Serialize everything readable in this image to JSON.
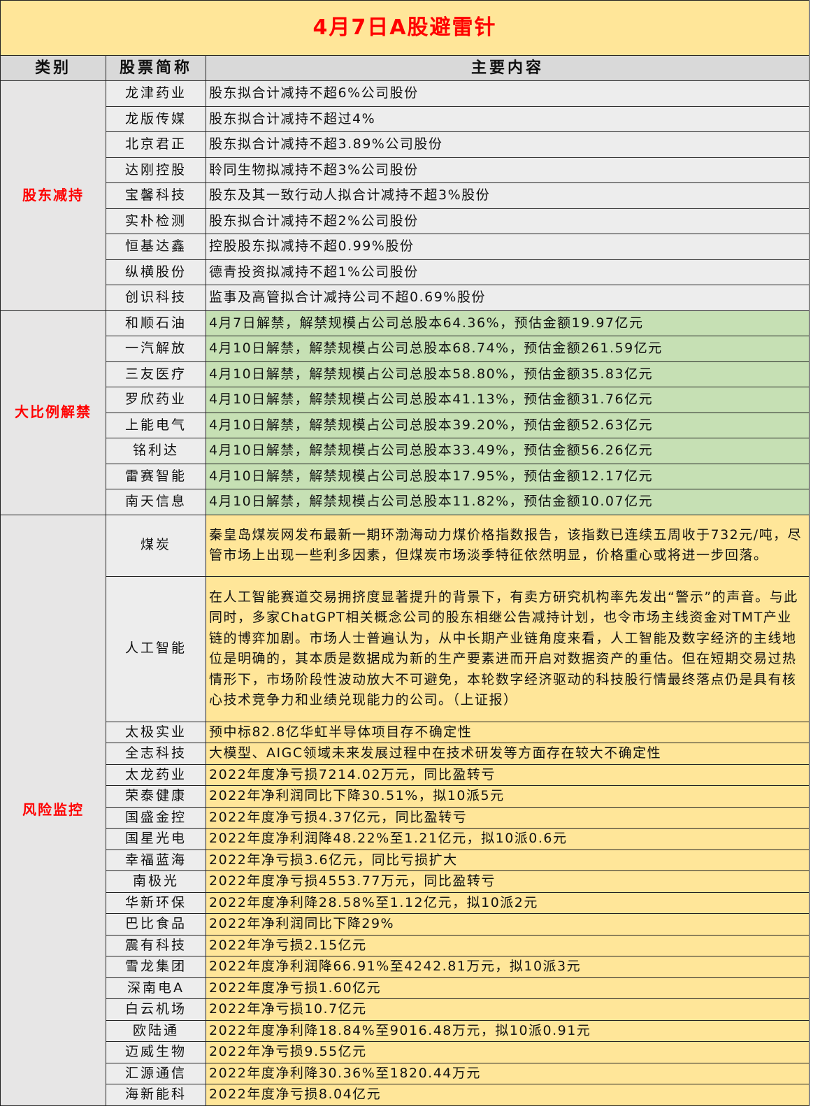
{
  "title": "4月7日A股避雷针",
  "headers": [
    "类别",
    "股票简称",
    "主要内容"
  ],
  "colors": {
    "title_bg": "#FFE699",
    "title_text": "#FF0000",
    "header_bg": "#D9D9D9",
    "green": "#C6E0B4",
    "yellow": "#FFE699",
    "category_text": "#FF0000"
  },
  "groups": [
    {
      "category": "股东减持",
      "style": "gray",
      "rows": [
        {
          "name": "龙津药业",
          "content": "股东拟合计减持不超6%公司股份"
        },
        {
          "name": "龙版传媒",
          "content": "股东拟合计减持不超过4%"
        },
        {
          "name": "北京君正",
          "content": "股东拟合计减持不超3.89%公司股份"
        },
        {
          "name": "达刚控股",
          "content": "聆同生物拟减持不超3%公司股份"
        },
        {
          "name": "宝馨科技",
          "content": "股东及其一致行动人拟合计减持不超3%股份"
        },
        {
          "name": "实朴检测",
          "content": "股东拟合计减持不超2%公司股份"
        },
        {
          "name": "恒基达鑫",
          "content": "控股股东拟减持不超0.99%股份"
        },
        {
          "name": "纵横股份",
          "content": "德青投资拟减持不超1%公司股份"
        },
        {
          "name": "创识科技",
          "content": "监事及高管拟合计减持公司不超0.69%股份"
        }
      ]
    },
    {
      "category": "大比例解禁",
      "style": "green",
      "rows": [
        {
          "name": "和顺石油",
          "content": "4月7日解禁，解禁规模占公司总股本64.36%，预估金额19.97亿元"
        },
        {
          "name": "一汽解放",
          "content": "4月10日解禁，解禁规模占公司总股本68.74%，预估金额261.59亿元"
        },
        {
          "name": "三友医疗",
          "content": "4月10日解禁，解禁规模占公司总股本58.80%，预估金额35.83亿元"
        },
        {
          "name": "罗欣药业",
          "content": "4月10日解禁，解禁规模占公司总股本41.13%，预估金额31.76亿元"
        },
        {
          "name": "上能电气",
          "content": "4月10日解禁，解禁规模占公司总股本39.20%，预估金额52.63亿元"
        },
        {
          "name": "铭利达",
          "content": "4月10日解禁，解禁规模占公司总股本33.49%，预估金额56.26亿元"
        },
        {
          "name": "雷赛智能",
          "content": "4月10日解禁，解禁规模占公司总股本17.95%，预估金额12.17亿元"
        },
        {
          "name": "南天信息",
          "content": "4月10日解禁，解禁规模占公司总股本11.82%，预估金额10.07亿元"
        }
      ]
    },
    {
      "category": "风险监控",
      "style": "yellow",
      "rows": [
        {
          "name": "煤炭",
          "content": "秦皇岛煤炭网发布最新一期环渤海动力煤价格指数报告，该指数已连续五周收于732元/吨，尽管市场上出现一些利多因素，但煤炭市场淡季特征依然明显，价格重心或将进一步回落。"
        },
        {
          "name": "人工智能",
          "content": "在人工智能赛道交易拥挤度显著提升的背景下，有卖方研究机构率先发出“警示”的声音。与此同时，多家ChatGPT相关概念公司的股东相继公告减持计划，也令市场主线资金对TMT产业链的博弈加剧。市场人士普遍认为，从中长期产业链角度来看，人工智能及数字经济的主线地位是明确的，其本质是数据成为新的生产要素进而开启对数据资产的重估。但在短期交易过热情形下，市场阶段性波动放大不可避免，本轮数字经济驱动的科技股行情最终落点仍是具有核心技术竞争力和业绩兑现能力的公司。（上证报）"
        },
        {
          "name": "太极实业",
          "content": "预中标82.8亿华虹半导体项目存不确定性"
        },
        {
          "name": "全志科技",
          "content": "大模型、AIGC领域未来发展过程中在技术研发等方面存在较大不确定性"
        },
        {
          "name": "太龙药业",
          "content": "2022年度净亏损7214.02万元，同比盈转亏"
        },
        {
          "name": "荣泰健康",
          "content": "2022年净利润同比下降30.51%，拟10派5元"
        },
        {
          "name": "国盛金控",
          "content": "2022年度净亏损4.37亿元，同比盈转亏"
        },
        {
          "name": "国星光电",
          "content": "2022年度净利润降48.22%至1.21亿元，拟10派0.6元"
        },
        {
          "name": "幸福蓝海",
          "content": "2022年净亏损3.6亿元，同比亏损扩大"
        },
        {
          "name": "南极光",
          "content": "2022年度净亏损4553.77万元，同比盈转亏"
        },
        {
          "name": "华新环保",
          "content": "2022年度净利降28.58%至1.12亿元，拟10派2元"
        },
        {
          "name": "巴比食品",
          "content": "2022年净利润同比下降29%"
        },
        {
          "name": "震有科技",
          "content": "2022年净亏损2.15亿元"
        },
        {
          "name": "雪龙集团",
          "content": "2022年度净利润降66.91%至4242.81万元，拟10派3元"
        },
        {
          "name": "深南电A",
          "content": "2022年度净亏损1.60亿元"
        },
        {
          "name": "白云机场",
          "content": "2022年净亏损10.7亿元"
        },
        {
          "name": "欧陆通",
          "content": "2022年度净利降18.84%至9016.48万元，拟10派0.91元"
        },
        {
          "name": "迈威生物",
          "content": "2022年净亏损9.55亿元"
        },
        {
          "name": "汇源通信",
          "content": "2022年度净利降30.36%至1820.44万元"
        },
        {
          "name": "海新能科",
          "content": "2022年度净亏损8.04亿元"
        }
      ]
    }
  ]
}
